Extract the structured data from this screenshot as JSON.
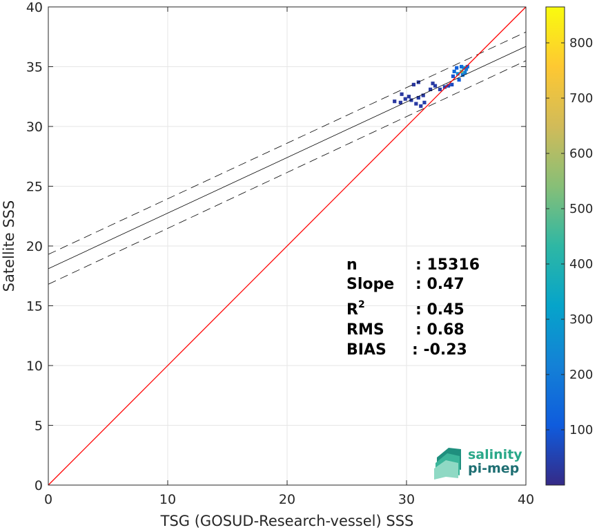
{
  "chart_data": {
    "type": "heatmap",
    "xlabel": "TSG (GOSUD-Research-vessel) SSS",
    "ylabel": "Satellite SSS",
    "xlim": [
      0,
      40
    ],
    "ylim": [
      0,
      40
    ],
    "xticks": [
      0,
      10,
      20,
      30,
      40
    ],
    "yticks": [
      0,
      5,
      10,
      15,
      20,
      25,
      30,
      35,
      40
    ],
    "grid": true,
    "colorbar": {
      "range": [
        0,
        865
      ],
      "ticks": [
        100,
        200,
        300,
        400,
        500,
        600,
        700,
        800
      ],
      "colormap": "parula"
    },
    "identity_line": {
      "color": "#ff0000",
      "from": [
        0,
        0
      ],
      "to": [
        40,
        40
      ]
    },
    "fit_line": {
      "intercept": 18.1,
      "end_value": 36.7
    },
    "fit_band": {
      "upper": [
        19.3,
        37.9
      ],
      "lower": [
        16.8,
        35.5
      ]
    },
    "density_cells": [
      [
        34.0,
        34.6,
        150
      ],
      [
        34.3,
        34.4,
        250
      ],
      [
        34.6,
        34.6,
        500
      ],
      [
        34.8,
        34.9,
        300
      ],
      [
        35.0,
        34.8,
        200
      ],
      [
        34.2,
        34.9,
        120
      ],
      [
        34.7,
        34.3,
        180
      ],
      [
        34.9,
        34.5,
        220
      ],
      [
        34.4,
        33.9,
        110
      ],
      [
        35.1,
        35.0,
        140
      ],
      [
        33.9,
        34.2,
        90
      ],
      [
        34.6,
        35.0,
        160
      ],
      [
        33.5,
        33.4,
        60
      ],
      [
        33.2,
        33.3,
        50
      ],
      [
        32.8,
        33.1,
        45
      ],
      [
        32.4,
        33.4,
        40
      ],
      [
        33.8,
        33.5,
        70
      ],
      [
        32.0,
        33.1,
        40
      ],
      [
        31.4,
        32.6,
        35
      ],
      [
        31.0,
        32.4,
        40
      ],
      [
        30.4,
        32.2,
        40
      ],
      [
        29.9,
        32.3,
        35
      ],
      [
        31.5,
        32.0,
        45
      ],
      [
        31.2,
        31.7,
        40
      ],
      [
        30.8,
        31.9,
        35
      ],
      [
        30.2,
        32.5,
        30
      ],
      [
        29.6,
        32.7,
        30
      ],
      [
        29.5,
        32.0,
        30
      ],
      [
        29.0,
        32.1,
        30
      ],
      [
        31.0,
        33.7,
        35
      ],
      [
        30.6,
        33.5,
        30
      ],
      [
        32.2,
        33.6,
        35
      ]
    ],
    "stats": [
      {
        "label": "n",
        "value": ": 15316"
      },
      {
        "label": "Slope",
        "value": ": 0.47"
      },
      {
        "label": "R",
        "sup": "2",
        "value": ": 0.45"
      },
      {
        "label": "RMS",
        "value": ": 0.68"
      },
      {
        "label": "BIAS",
        "value": ": -0.23"
      }
    ]
  },
  "logo": {
    "line1": "salinity",
    "line2": "pi-mep"
  }
}
